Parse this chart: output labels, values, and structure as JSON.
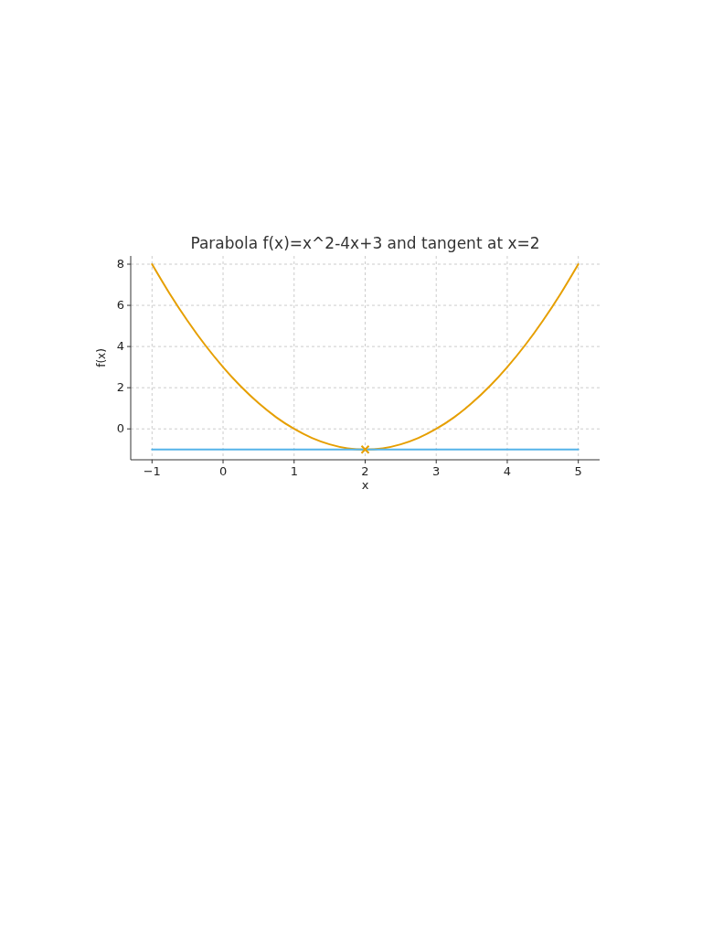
{
  "chart_data": {
    "type": "line",
    "title": "Parabola f(x)=x^2-4x+3 and tangent at x=2",
    "xlabel": "x",
    "ylabel": "f(x)",
    "xlim": [
      -1.3,
      5.3
    ],
    "ylim": [
      -1.5,
      8.4
    ],
    "xticks": [
      {
        "value": -1,
        "label": "−1"
      },
      0,
      1,
      2,
      3,
      4,
      5
    ],
    "yticks": [
      0,
      2,
      4,
      6,
      8
    ],
    "grid": true,
    "line_style": "solid",
    "series": [
      {
        "color": "#e69f00",
        "marker": "none",
        "x": [
          -1,
          -0.75,
          -0.5,
          -0.25,
          0,
          0.25,
          0.5,
          0.75,
          1,
          1.25,
          1.5,
          1.75,
          2,
          2.25,
          2.5,
          2.75,
          3,
          3.25,
          3.5,
          3.75,
          4,
          4.25,
          4.5,
          4.75,
          5
        ],
        "values": [
          8,
          6.56,
          5.25,
          4.06,
          3,
          2.06,
          1.25,
          0.56,
          0,
          -0.44,
          -0.75,
          -0.94,
          -1,
          -0.94,
          -0.75,
          -0.44,
          0,
          0.56,
          1.25,
          2.06,
          3,
          4.06,
          5.25,
          6.56,
          8
        ]
      },
      {
        "color": "#56b4e9",
        "marker": "none",
        "x": [
          -1,
          5
        ],
        "values": [
          -1,
          -1
        ]
      },
      {
        "type": "scatter",
        "color": "#e69f00",
        "marker": "cross",
        "x": [
          2
        ],
        "values": [
          -1
        ]
      }
    ]
  }
}
